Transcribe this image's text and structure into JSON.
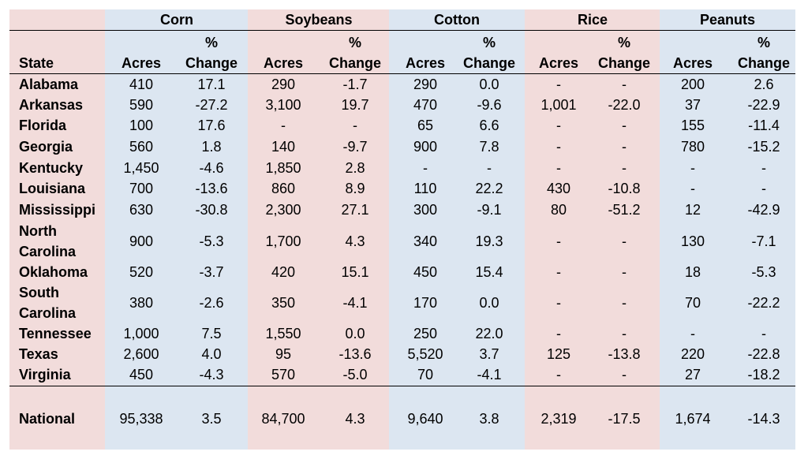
{
  "colors": {
    "pink": "#f2dcdb",
    "blue": "#dce6f1"
  },
  "groups": [
    "Corn",
    "Soybeans",
    "Cotton",
    "Rice",
    "Peanuts"
  ],
  "subheader": {
    "state": "State",
    "acres": "Acres",
    "pct_top": "%",
    "pct_bottom": "Change"
  },
  "rows": [
    {
      "state": "Alabama",
      "values": [
        "410",
        "17.1",
        "290",
        "-1.7",
        "290",
        "0.0",
        "-",
        "-",
        "200",
        "2.6"
      ]
    },
    {
      "state": "Arkansas",
      "values": [
        "590",
        "-27.2",
        "3,100",
        "19.7",
        "470",
        "-9.6",
        "1,001",
        "-22.0",
        "37",
        "-22.9"
      ]
    },
    {
      "state": "Florida",
      "values": [
        "100",
        "17.6",
        "-",
        "-",
        "65",
        "6.6",
        "-",
        "-",
        "155",
        "-11.4"
      ]
    },
    {
      "state": "Georgia",
      "values": [
        "560",
        "1.8",
        "140",
        "-9.7",
        "900",
        "7.8",
        "-",
        "-",
        "780",
        "-15.2"
      ]
    },
    {
      "state": "Kentucky",
      "values": [
        "1,450",
        "-4.6",
        "1,850",
        "2.8",
        "-",
        "-",
        "-",
        "-",
        "-",
        "-"
      ]
    },
    {
      "state": "Louisiana",
      "values": [
        "700",
        "-13.6",
        "860",
        "8.9",
        "110",
        "22.2",
        "430",
        "-10.8",
        "-",
        "-"
      ]
    },
    {
      "state": "Mississippi",
      "values": [
        "630",
        "-30.8",
        "2,300",
        "27.1",
        "300",
        "-9.1",
        "80",
        "-51.2",
        "12",
        "-42.9"
      ]
    },
    {
      "state": "North Carolina",
      "values": [
        "900",
        "-5.3",
        "1,700",
        "4.3",
        "340",
        "19.3",
        "-",
        "-",
        "130",
        "-7.1"
      ]
    },
    {
      "state": "Oklahoma",
      "values": [
        "520",
        "-3.7",
        "420",
        "15.1",
        "450",
        "15.4",
        "-",
        "-",
        "18",
        "-5.3"
      ]
    },
    {
      "state": "South Carolina",
      "values": [
        "380",
        "-2.6",
        "350",
        "-4.1",
        "170",
        "0.0",
        "-",
        "-",
        "70",
        "-22.2"
      ]
    },
    {
      "state": "Tennessee",
      "values": [
        "1,000",
        "7.5",
        "1,550",
        "0.0",
        "250",
        "22.0",
        "-",
        "-",
        "-",
        "-"
      ]
    },
    {
      "state": "Texas",
      "values": [
        "2,600",
        "4.0",
        "95",
        "-13.6",
        "5,520",
        "3.7",
        "125",
        "-13.8",
        "220",
        "-22.8"
      ]
    },
    {
      "state": "Virginia",
      "values": [
        "450",
        "-4.3",
        "570",
        "-5.0",
        "70",
        "-4.1",
        "-",
        "-",
        "27",
        "-18.2"
      ]
    }
  ],
  "national": {
    "state": "National",
    "values": [
      "95,338",
      "3.5",
      "84,700",
      "4.3",
      "9,640",
      "3.8",
      "2,319",
      "-17.5",
      "1,674",
      "-14.3"
    ]
  }
}
